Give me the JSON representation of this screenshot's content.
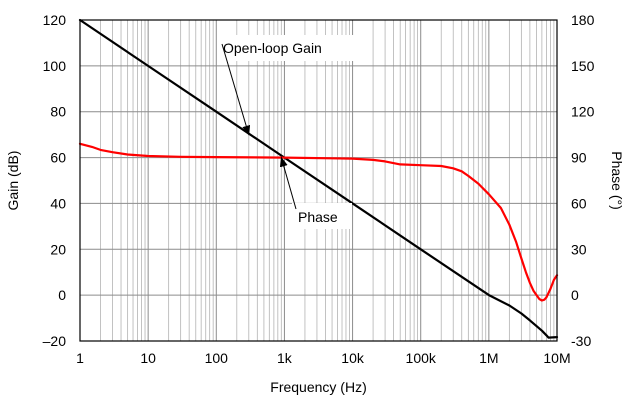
{
  "chart_data": {
    "type": "line",
    "xlabel": "Frequency (Hz)",
    "ylabel_left": "Gain (dB)",
    "ylabel_right": "Phase (°)",
    "x_scale": "log",
    "xlim": [
      1,
      10000000
    ],
    "ylim_left": [
      -20,
      120
    ],
    "ylim_right": [
      -30,
      180
    ],
    "grid": true,
    "x_ticks": [
      {
        "value": 1,
        "label": "1"
      },
      {
        "value": 10,
        "label": "10"
      },
      {
        "value": 100,
        "label": "100"
      },
      {
        "value": 1000,
        "label": "1k"
      },
      {
        "value": 10000,
        "label": "10k"
      },
      {
        "value": 100000,
        "label": "100k"
      },
      {
        "value": 1000000,
        "label": "1M"
      },
      {
        "value": 10000000,
        "label": "10M"
      }
    ],
    "y_left_ticks": [
      {
        "value": 120,
        "label": "120"
      },
      {
        "value": 100,
        "label": "100"
      },
      {
        "value": 80,
        "label": "80"
      },
      {
        "value": 60,
        "label": "60"
      },
      {
        "value": 40,
        "label": "40"
      },
      {
        "value": 20,
        "label": "20"
      },
      {
        "value": 0,
        "label": "0"
      },
      {
        "value": -20,
        "label": "–20"
      }
    ],
    "y_right_ticks": [
      {
        "value": 180,
        "label": "180"
      },
      {
        "value": 150,
        "label": "150"
      },
      {
        "value": 120,
        "label": "120"
      },
      {
        "value": 90,
        "label": "90"
      },
      {
        "value": 60,
        "label": "60"
      },
      {
        "value": 30,
        "label": "30"
      },
      {
        "value": 0,
        "label": "0"
      },
      {
        "value": -30,
        "label": "-30"
      }
    ],
    "series": [
      {
        "name": "Open-loop Gain",
        "axis": "left",
        "color": "#000000",
        "points": [
          [
            1,
            120
          ],
          [
            10,
            100
          ],
          [
            100,
            80
          ],
          [
            1000,
            60
          ],
          [
            10000,
            40
          ],
          [
            100000,
            20
          ],
          [
            1000000,
            0
          ],
          [
            2000000,
            -4.5
          ],
          [
            3000000,
            -8
          ],
          [
            4000000,
            -11
          ],
          [
            5000000,
            -13.5
          ],
          [
            6000000,
            -15.5
          ],
          [
            7000000,
            -17.5
          ],
          [
            7500000,
            -18.5
          ],
          [
            10000000,
            -18.3
          ]
        ]
      },
      {
        "name": "Phase",
        "axis": "right",
        "color": "#ff0000",
        "points": [
          [
            1,
            99
          ],
          [
            1.5,
            97
          ],
          [
            2,
            95
          ],
          [
            3,
            93.5
          ],
          [
            5,
            92
          ],
          [
            10,
            91
          ],
          [
            30,
            90.5
          ],
          [
            100,
            90.3
          ],
          [
            1000,
            90
          ],
          [
            5000,
            89.5
          ],
          [
            10000,
            89.3
          ],
          [
            20000,
            88.5
          ],
          [
            30000,
            87.5
          ],
          [
            50000,
            85.5
          ],
          [
            100000,
            85
          ],
          [
            200000,
            84.5
          ],
          [
            300000,
            83
          ],
          [
            400000,
            81
          ],
          [
            500000,
            78
          ],
          [
            700000,
            73
          ],
          [
            1000000,
            66
          ],
          [
            1500000,
            57
          ],
          [
            2000000,
            46
          ],
          [
            2500000,
            35
          ],
          [
            3000000,
            24
          ],
          [
            3500000,
            15
          ],
          [
            4000000,
            8
          ],
          [
            4500000,
            3
          ],
          [
            5000000,
            0
          ],
          [
            5500000,
            -2.5
          ],
          [
            6000000,
            -3.5
          ],
          [
            6500000,
            -3
          ],
          [
            7000000,
            -1.5
          ],
          [
            8000000,
            4
          ],
          [
            9000000,
            10
          ],
          [
            10000000,
            13
          ]
        ]
      }
    ],
    "annotations": [
      {
        "text": "Open-loop Gain",
        "target": [
          300,
          70
        ]
      },
      {
        "text": "Phase",
        "target": [
          900,
          90
        ]
      }
    ]
  }
}
